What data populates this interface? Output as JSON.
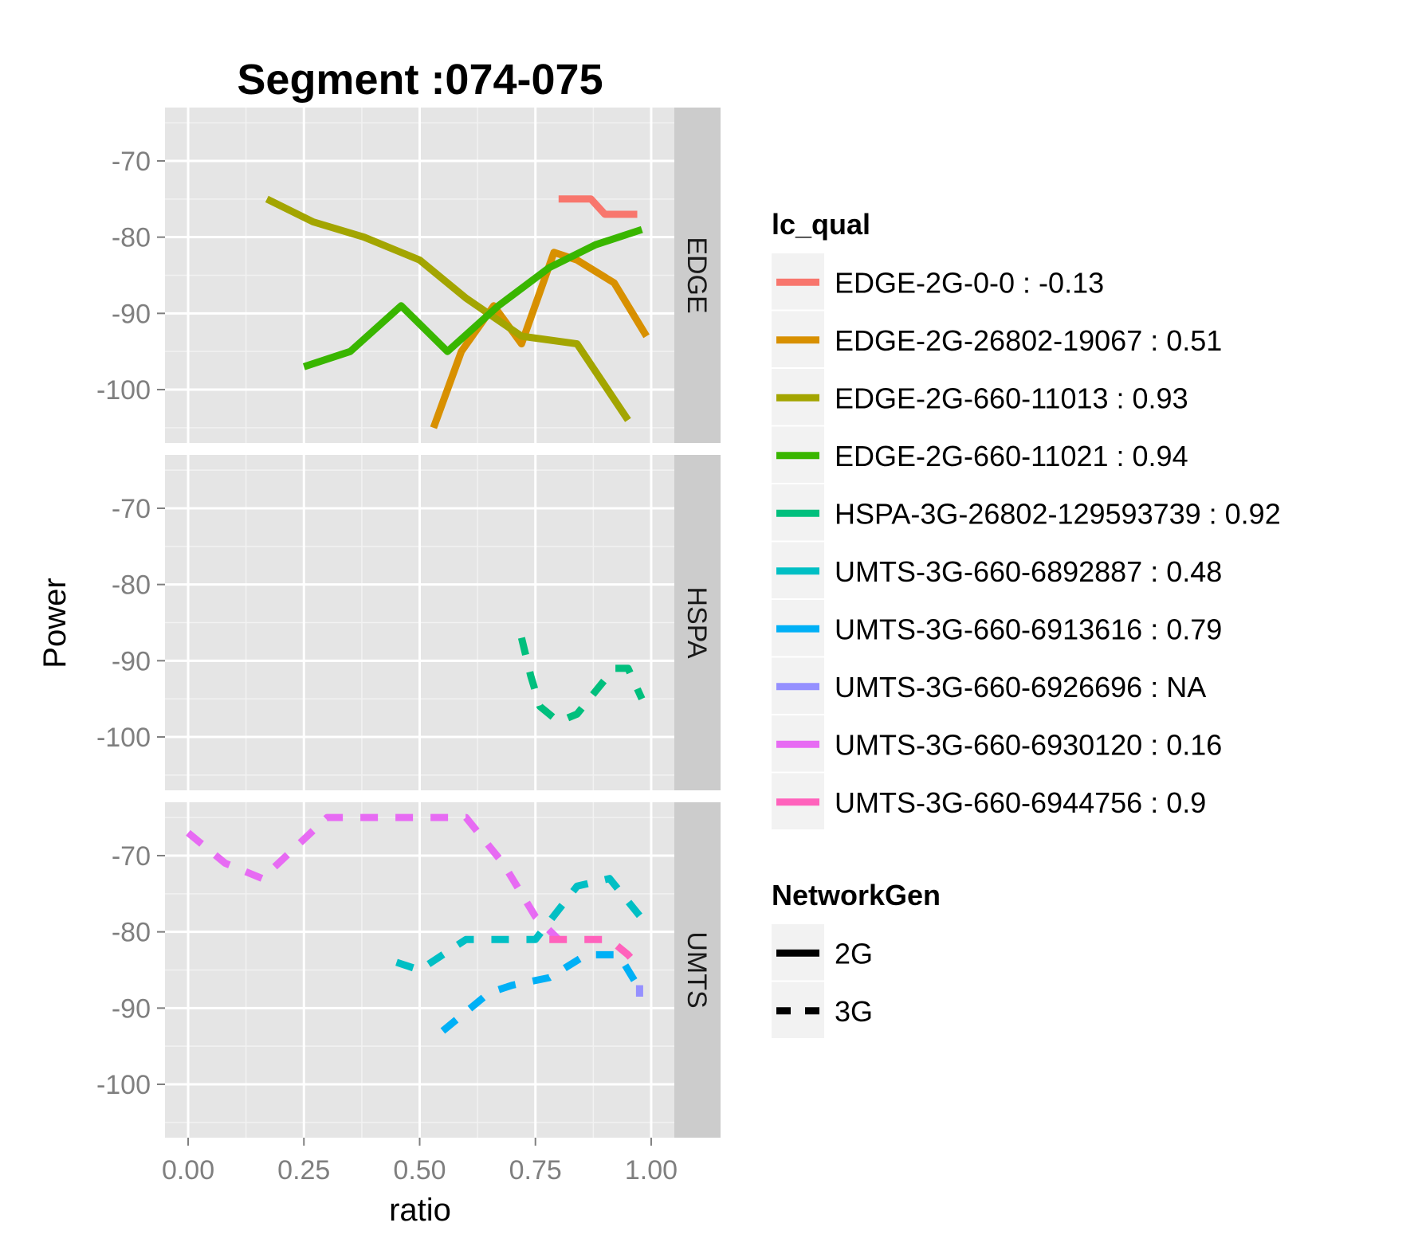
{
  "chart_data": {
    "type": "line",
    "title": "Segment :074-075",
    "xlabel": "ratio",
    "ylabel": "Power",
    "xlim": [
      -0.05,
      1.05
    ],
    "x_ticks": [
      0.0,
      0.25,
      0.5,
      0.75,
      1.0
    ],
    "x_tick_labels": [
      "0.00",
      "0.25",
      "0.50",
      "0.75",
      "1.00"
    ],
    "y_ticks": [
      -70,
      -80,
      -90,
      -100
    ],
    "y_tick_labels": [
      "-70",
      "-80",
      "-90",
      "-100"
    ],
    "ylim": [
      -107,
      -63
    ],
    "grid": true,
    "facets": [
      "EDGE",
      "HSPA",
      "UMTS"
    ],
    "legend_position": "right",
    "legend": {
      "color_title": "lc_qual",
      "linetype_title": "NetworkGen",
      "linetypes": [
        {
          "label": "2G",
          "dash": "solid"
        },
        {
          "label": "3G",
          "dash": "dashed"
        }
      ]
    },
    "series": [
      {
        "name": "EDGE-2G-0-0 : -0.13",
        "facet": "EDGE",
        "gen": "2G",
        "color": "#F8766D",
        "points": [
          [
            0.8,
            -75
          ],
          [
            0.87,
            -75
          ],
          [
            0.9,
            -77
          ],
          [
            0.97,
            -77
          ]
        ]
      },
      {
        "name": "EDGE-2G-26802-19067 : 0.51",
        "facet": "EDGE",
        "gen": "2G",
        "color": "#D89000",
        "points": [
          [
            0.53,
            -105
          ],
          [
            0.59,
            -95
          ],
          [
            0.66,
            -89
          ],
          [
            0.72,
            -94
          ],
          [
            0.79,
            -82
          ],
          [
            0.84,
            -83
          ],
          [
            0.92,
            -86
          ],
          [
            0.99,
            -93
          ]
        ]
      },
      {
        "name": "EDGE-2G-660-11013 : 0.93",
        "facet": "EDGE",
        "gen": "2G",
        "color": "#A3A500",
        "points": [
          [
            0.17,
            -75
          ],
          [
            0.27,
            -78
          ],
          [
            0.38,
            -80
          ],
          [
            0.5,
            -83
          ],
          [
            0.6,
            -88
          ],
          [
            0.72,
            -93
          ],
          [
            0.84,
            -94
          ],
          [
            0.95,
            -104
          ]
        ]
      },
      {
        "name": "EDGE-2G-660-11021 : 0.94",
        "facet": "EDGE",
        "gen": "2G",
        "color": "#39B600",
        "points": [
          [
            0.25,
            -97
          ],
          [
            0.35,
            -95
          ],
          [
            0.46,
            -89
          ],
          [
            0.56,
            -95
          ],
          [
            0.67,
            -89
          ],
          [
            0.78,
            -84
          ],
          [
            0.88,
            -81
          ],
          [
            0.98,
            -79
          ]
        ]
      },
      {
        "name": "HSPA-3G-26802-129593739 : 0.92",
        "facet": "HSPA",
        "gen": "3G",
        "color": "#00BF7D",
        "points": [
          [
            0.72,
            -87
          ],
          [
            0.74,
            -92
          ],
          [
            0.76,
            -96
          ],
          [
            0.8,
            -98
          ],
          [
            0.84,
            -97
          ],
          [
            0.88,
            -94
          ],
          [
            0.92,
            -91
          ],
          [
            0.95,
            -91
          ],
          [
            0.98,
            -95
          ]
        ]
      },
      {
        "name": "UMTS-3G-660-6892887 : 0.48",
        "facet": "UMTS",
        "gen": "3G",
        "color": "#00BFC4",
        "points": [
          [
            0.45,
            -84
          ],
          [
            0.5,
            -85
          ],
          [
            0.6,
            -81
          ],
          [
            0.75,
            -81
          ],
          [
            0.84,
            -74
          ],
          [
            0.91,
            -73
          ],
          [
            0.99,
            -79
          ]
        ]
      },
      {
        "name": "UMTS-3G-660-6913616 : 0.79",
        "facet": "UMTS",
        "gen": "3G",
        "color": "#00B0F6",
        "points": [
          [
            0.55,
            -93
          ],
          [
            0.65,
            -88
          ],
          [
            0.7,
            -87
          ],
          [
            0.78,
            -86
          ],
          [
            0.86,
            -83
          ],
          [
            0.93,
            -83
          ],
          [
            0.97,
            -87
          ]
        ]
      },
      {
        "name": "UMTS-3G-660-6926696 : NA",
        "facet": "UMTS",
        "gen": "3G",
        "color": "#9590FF",
        "points": [
          [
            0.975,
            -87
          ],
          [
            0.975,
            -88.5
          ]
        ]
      },
      {
        "name": "UMTS-3G-660-6930120 : 0.16",
        "facet": "UMTS",
        "gen": "3G",
        "color": "#E76BF3",
        "points": [
          [
            0.0,
            -67
          ],
          [
            0.08,
            -71
          ],
          [
            0.16,
            -73
          ],
          [
            0.3,
            -65
          ],
          [
            0.45,
            -65
          ],
          [
            0.6,
            -65
          ],
          [
            0.68,
            -71
          ],
          [
            0.75,
            -78
          ],
          [
            0.8,
            -81
          ]
        ]
      },
      {
        "name": "UMTS-3G-660-6944756 : 0.9",
        "facet": "UMTS",
        "gen": "3G",
        "color": "#FF62BC",
        "points": [
          [
            0.78,
            -81
          ],
          [
            0.91,
            -81
          ],
          [
            0.95,
            -83
          ],
          [
            0.98,
            -85
          ]
        ]
      }
    ]
  }
}
